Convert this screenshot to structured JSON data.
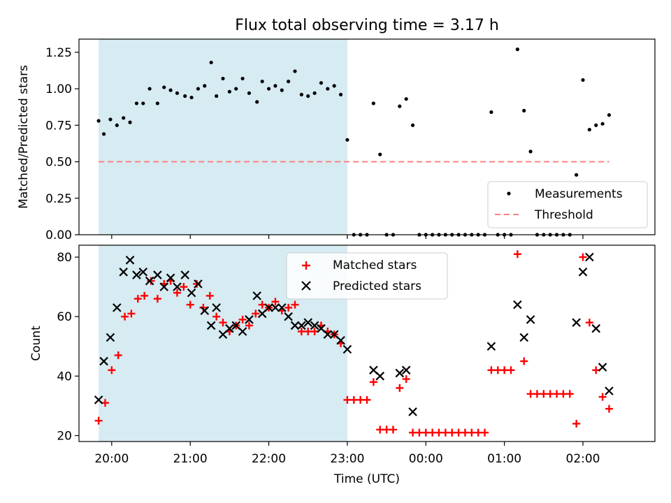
{
  "figure": {
    "title": "Flux total observing time = 3.17 h",
    "background": "#ffffff",
    "shade_color": "#add8e6",
    "shade_opacity": 0.5
  },
  "chart_data": [
    {
      "type": "scatter",
      "panel": "top",
      "title": "Flux total observing time = 3.17 h",
      "xlabel": "",
      "ylabel": "Matched/Predicted stars",
      "ylim": [
        0,
        1.34
      ],
      "yticks": [
        0,
        0.25,
        0.5,
        0.75,
        1.0,
        1.25
      ],
      "ytick_labels": [
        "0.00",
        "0.25",
        "0.50",
        "0.75",
        "1.00",
        "1.25"
      ],
      "shaded_span": [
        "19:50",
        "23:00"
      ],
      "threshold": 0.5,
      "legend": {
        "position": "lower-right",
        "entries": [
          "Measurements",
          "Threshold"
        ]
      },
      "series": [
        {
          "name": "Measurements",
          "marker": "dot",
          "color": "#000000",
          "points": [
            [
              "19:50",
              0.78
            ],
            [
              "19:54",
              0.69
            ],
            [
              "19:59",
              0.79
            ],
            [
              "20:04",
              0.75
            ],
            [
              "20:09",
              0.8
            ],
            [
              "20:14",
              0.77
            ],
            [
              "20:19",
              0.9
            ],
            [
              "20:24",
              0.9
            ],
            [
              "20:29",
              1.0
            ],
            [
              "20:35",
              0.9
            ],
            [
              "20:40",
              1.01
            ],
            [
              "20:45",
              0.99
            ],
            [
              "20:50",
              0.97
            ],
            [
              "20:56",
              0.95
            ],
            [
              "21:01",
              0.94
            ],
            [
              "21:06",
              1.0
            ],
            [
              "21:11",
              1.02
            ],
            [
              "21:16",
              1.18
            ],
            [
              "21:20",
              0.95
            ],
            [
              "21:25",
              1.07
            ],
            [
              "21:30",
              0.98
            ],
            [
              "21:35",
              1.0
            ],
            [
              "21:40",
              1.07
            ],
            [
              "21:45",
              0.97
            ],
            [
              "21:51",
              0.91
            ],
            [
              "21:55",
              1.05
            ],
            [
              "22:00",
              1.0
            ],
            [
              "22:05",
              1.02
            ],
            [
              "22:10",
              0.99
            ],
            [
              "22:15",
              1.05
            ],
            [
              "22:20",
              1.12
            ],
            [
              "22:25",
              0.96
            ],
            [
              "22:30",
              0.95
            ],
            [
              "22:35",
              0.97
            ],
            [
              "22:40",
              1.04
            ],
            [
              "22:45",
              1.0
            ],
            [
              "22:50",
              1.02
            ],
            [
              "22:55",
              0.96
            ],
            [
              "23:00",
              0.65
            ],
            [
              "23:05",
              0.0
            ],
            [
              "23:10",
              0.0
            ],
            [
              "23:15",
              0.0
            ],
            [
              "23:20",
              0.9
            ],
            [
              "23:25",
              0.55
            ],
            [
              "23:30",
              0.0
            ],
            [
              "23:35",
              0.0
            ],
            [
              "23:40",
              0.88
            ],
            [
              "23:45",
              0.93
            ],
            [
              "23:50",
              0.75
            ],
            [
              "23:55",
              0.0
            ],
            [
              "00:00",
              0.0
            ],
            [
              "00:05",
              0.0
            ],
            [
              "00:10",
              0.0
            ],
            [
              "00:15",
              0.0
            ],
            [
              "00:20",
              0.0
            ],
            [
              "00:25",
              0.0
            ],
            [
              "00:30",
              0.0
            ],
            [
              "00:35",
              0.0
            ],
            [
              "00:40",
              0.0
            ],
            [
              "00:45",
              0.0
            ],
            [
              "00:50",
              0.84
            ],
            [
              "00:55",
              0.0
            ],
            [
              "01:00",
              0.0
            ],
            [
              "01:05",
              0.0
            ],
            [
              "01:10",
              1.27
            ],
            [
              "01:15",
              0.85
            ],
            [
              "01:20",
              0.57
            ],
            [
              "01:25",
              0.0
            ],
            [
              "01:30",
              0.0
            ],
            [
              "01:35",
              0.0
            ],
            [
              "01:40",
              0.0
            ],
            [
              "01:45",
              0.0
            ],
            [
              "01:50",
              0.0
            ],
            [
              "01:55",
              0.41
            ],
            [
              "02:00",
              1.06
            ],
            [
              "02:05",
              0.72
            ],
            [
              "02:10",
              0.75
            ],
            [
              "02:15",
              0.76
            ],
            [
              "02:20",
              0.82
            ]
          ]
        },
        {
          "name": "Threshold",
          "marker": "dashed-line",
          "color": "#ff7f7f",
          "x_range": [
            "19:50",
            "02:20"
          ],
          "value": 0.5
        }
      ]
    },
    {
      "type": "scatter",
      "panel": "bottom",
      "xlabel": "Time (UTC)",
      "ylabel": "Count",
      "ylim": [
        18,
        84
      ],
      "yticks": [
        20,
        40,
        60,
        80
      ],
      "ytick_labels": [
        "20",
        "40",
        "60",
        "80"
      ],
      "xlim": [
        "19:35",
        "02:55"
      ],
      "xticks": [
        "20:00",
        "21:00",
        "22:00",
        "23:00",
        "00:00",
        "01:00",
        "02:00"
      ],
      "xtick_labels": [
        "20:00",
        "21:00",
        "22:00",
        "23:00",
        "00:00",
        "01:00",
        "02:00"
      ],
      "shaded_span": [
        "19:50",
        "23:00"
      ],
      "legend": {
        "position": "top-center",
        "entries": [
          "Matched stars",
          "Predicted stars"
        ]
      },
      "series": [
        {
          "name": "Matched stars",
          "marker": "plus",
          "color": "#ff0000",
          "points": [
            [
              "19:50",
              25
            ],
            [
              "19:55",
              31
            ],
            [
              "20:00",
              42
            ],
            [
              "20:05",
              47
            ],
            [
              "20:10",
              60
            ],
            [
              "20:15",
              61
            ],
            [
              "20:20",
              66
            ],
            [
              "20:25",
              67
            ],
            [
              "20:30",
              72
            ],
            [
              "20:35",
              66
            ],
            [
              "20:40",
              71
            ],
            [
              "20:45",
              72
            ],
            [
              "20:50",
              68
            ],
            [
              "20:55",
              70
            ],
            [
              "21:00",
              64
            ],
            [
              "21:05",
              71
            ],
            [
              "21:10",
              63
            ],
            [
              "21:15",
              67
            ],
            [
              "21:20",
              60
            ],
            [
              "21:25",
              58
            ],
            [
              "21:30",
              55
            ],
            [
              "21:35",
              57
            ],
            [
              "21:40",
              59
            ],
            [
              "21:45",
              57
            ],
            [
              "21:50",
              61
            ],
            [
              "21:55",
              64
            ],
            [
              "22:00",
              63
            ],
            [
              "22:05",
              65
            ],
            [
              "22:10",
              62
            ],
            [
              "22:15",
              63
            ],
            [
              "22:20",
              64
            ],
            [
              "22:25",
              55
            ],
            [
              "22:30",
              55
            ],
            [
              "22:35",
              55
            ],
            [
              "22:40",
              57
            ],
            [
              "22:45",
              55
            ],
            [
              "22:50",
              54
            ],
            [
              "22:55",
              51
            ],
            [
              "23:00",
              32
            ],
            [
              "23:05",
              32
            ],
            [
              "23:10",
              32
            ],
            [
              "23:15",
              32
            ],
            [
              "23:20",
              38
            ],
            [
              "23:25",
              22
            ],
            [
              "23:30",
              22
            ],
            [
              "23:35",
              22
            ],
            [
              "23:40",
              36
            ],
            [
              "23:45",
              39
            ],
            [
              "23:50",
              21
            ],
            [
              "23:55",
              21
            ],
            [
              "00:00",
              21
            ],
            [
              "00:05",
              21
            ],
            [
              "00:10",
              21
            ],
            [
              "00:15",
              21
            ],
            [
              "00:20",
              21
            ],
            [
              "00:25",
              21
            ],
            [
              "00:30",
              21
            ],
            [
              "00:35",
              21
            ],
            [
              "00:40",
              21
            ],
            [
              "00:45",
              21
            ],
            [
              "00:50",
              42
            ],
            [
              "00:55",
              42
            ],
            [
              "01:00",
              42
            ],
            [
              "01:05",
              42
            ],
            [
              "01:10",
              81
            ],
            [
              "01:15",
              45
            ],
            [
              "01:20",
              34
            ],
            [
              "01:25",
              34
            ],
            [
              "01:30",
              34
            ],
            [
              "01:35",
              34
            ],
            [
              "01:40",
              34
            ],
            [
              "01:45",
              34
            ],
            [
              "01:50",
              34
            ],
            [
              "01:55",
              24
            ],
            [
              "02:00",
              80
            ],
            [
              "02:05",
              58
            ],
            [
              "02:10",
              42
            ],
            [
              "02:15",
              33
            ],
            [
              "02:20",
              29
            ]
          ]
        },
        {
          "name": "Predicted stars",
          "marker": "x",
          "color": "#000000",
          "points": [
            [
              "19:50",
              32
            ],
            [
              "19:54",
              45
            ],
            [
              "19:59",
              53
            ],
            [
              "20:04",
              63
            ],
            [
              "20:09",
              75
            ],
            [
              "20:14",
              79
            ],
            [
              "20:19",
              74
            ],
            [
              "20:24",
              75
            ],
            [
              "20:29",
              72
            ],
            [
              "20:35",
              74
            ],
            [
              "20:40",
              70
            ],
            [
              "20:45",
              73
            ],
            [
              "20:50",
              70
            ],
            [
              "20:56",
              74
            ],
            [
              "21:01",
              68
            ],
            [
              "21:06",
              71
            ],
            [
              "21:11",
              62
            ],
            [
              "21:16",
              57
            ],
            [
              "21:20",
              63
            ],
            [
              "21:25",
              54
            ],
            [
              "21:30",
              56
            ],
            [
              "21:35",
              57
            ],
            [
              "21:40",
              55
            ],
            [
              "21:45",
              59
            ],
            [
              "21:51",
              67
            ],
            [
              "21:55",
              61
            ],
            [
              "22:00",
              63
            ],
            [
              "22:05",
              63
            ],
            [
              "22:10",
              63
            ],
            [
              "22:15",
              60
            ],
            [
              "22:20",
              57
            ],
            [
              "22:25",
              57
            ],
            [
              "22:30",
              58
            ],
            [
              "22:35",
              57
            ],
            [
              "22:40",
              56
            ],
            [
              "22:45",
              54
            ],
            [
              "22:50",
              54
            ],
            [
              "22:55",
              52
            ],
            [
              "23:00",
              49
            ],
            [
              "23:20",
              42
            ],
            [
              "23:25",
              40
            ],
            [
              "23:40",
              41
            ],
            [
              "23:45",
              42
            ],
            [
              "23:50",
              28
            ],
            [
              "00:50",
              50
            ],
            [
              "01:10",
              64
            ],
            [
              "01:15",
              53
            ],
            [
              "01:20",
              59
            ],
            [
              "01:55",
              58
            ],
            [
              "02:00",
              75
            ],
            [
              "02:05",
              80
            ],
            [
              "02:10",
              56
            ],
            [
              "02:15",
              43
            ],
            [
              "02:20",
              35
            ]
          ]
        }
      ]
    }
  ]
}
